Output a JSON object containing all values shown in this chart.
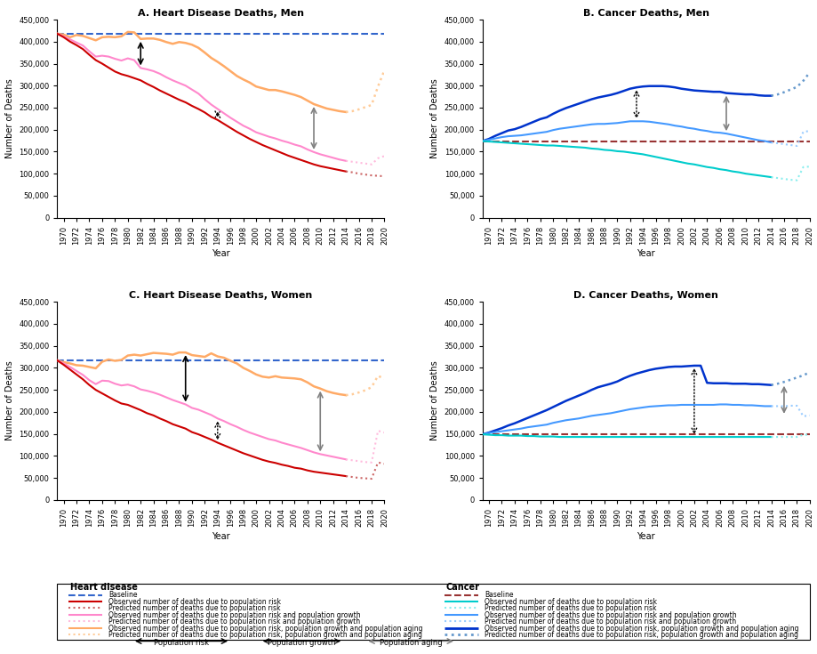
{
  "titles": [
    "A. Heart Disease Deaths, Men",
    "B. Cancer Deaths, Men",
    "C. Heart Disease Deaths, Women",
    "D. Cancer Deaths, Women"
  ],
  "years_obs": [
    1969,
    1970,
    1971,
    1972,
    1973,
    1974,
    1975,
    1976,
    1977,
    1978,
    1979,
    1980,
    1981,
    1982,
    1983,
    1984,
    1985,
    1986,
    1987,
    1988,
    1989,
    1990,
    1991,
    1992,
    1993,
    1994,
    1995,
    1996,
    1997,
    1998,
    1999,
    2000,
    2001,
    2002,
    2003,
    2004,
    2005,
    2006,
    2007,
    2008,
    2009,
    2010,
    2011,
    2012,
    2013,
    2014
  ],
  "years_pred": [
    2014,
    2015,
    2016,
    2017,
    2018,
    2019,
    2020
  ],
  "hd_men": {
    "baseline": 418000,
    "risk_obs": [
      418000,
      410000,
      400000,
      392000,
      383000,
      370000,
      358000,
      350000,
      341000,
      332000,
      326000,
      322000,
      317000,
      312000,
      304000,
      297000,
      289000,
      282000,
      275000,
      268000,
      262000,
      254000,
      247000,
      239000,
      229000,
      222000,
      213000,
      204000,
      195000,
      187000,
      179000,
      172000,
      165000,
      159000,
      153000,
      147000,
      141000,
      136000,
      131000,
      126000,
      121000,
      117000,
      114000,
      111000,
      108000,
      105000
    ],
    "risk_pred": [
      105000,
      103000,
      100000,
      98000,
      96000,
      95000,
      94000
    ],
    "growth_obs": [
      418000,
      412000,
      405000,
      398000,
      391000,
      378000,
      366000,
      368000,
      366000,
      361000,
      357000,
      362000,
      358000,
      340000,
      337000,
      333000,
      327000,
      319000,
      312000,
      306000,
      300000,
      291000,
      282000,
      269000,
      257000,
      247000,
      237000,
      227000,
      218000,
      209000,
      202000,
      194000,
      189000,
      184000,
      180000,
      175000,
      171000,
      166000,
      162000,
      155000,
      149000,
      144000,
      140000,
      136000,
      132000,
      129000
    ],
    "growth_pred": [
      129000,
      127000,
      125000,
      123000,
      121000,
      135000,
      140000
    ],
    "aging_obs": [
      418000,
      416000,
      410000,
      415000,
      413000,
      408000,
      403000,
      410000,
      411000,
      410000,
      412000,
      422000,
      421000,
      406000,
      407000,
      407000,
      404000,
      399000,
      395000,
      399000,
      397000,
      393000,
      386000,
      375000,
      363000,
      354000,
      344000,
      333000,
      322000,
      314000,
      307000,
      298000,
      294000,
      290000,
      290000,
      287000,
      283000,
      279000,
      274000,
      266000,
      258000,
      253000,
      248000,
      245000,
      242000,
      240000
    ],
    "aging_pred": [
      240000,
      242000,
      246000,
      251000,
      256000,
      298000,
      335000
    ]
  },
  "cancer_men": {
    "baseline": 174000,
    "risk_obs": [
      174000,
      173000,
      172000,
      171000,
      170000,
      169000,
      168000,
      167000,
      166000,
      165000,
      164000,
      164000,
      163000,
      162000,
      161000,
      160000,
      159000,
      157000,
      156000,
      154000,
      153000,
      151000,
      150000,
      148000,
      146000,
      144000,
      141000,
      138000,
      135000,
      132000,
      129000,
      126000,
      123000,
      121000,
      118000,
      115000,
      113000,
      110000,
      108000,
      105000,
      103000,
      100000,
      98000,
      96000,
      94000,
      92000
    ],
    "risk_pred": [
      92000,
      90000,
      88000,
      86000,
      85000,
      115000,
      116000
    ],
    "growth_obs": [
      174000,
      177000,
      180000,
      183000,
      185000,
      186000,
      187000,
      189000,
      191000,
      193000,
      195000,
      199000,
      202000,
      204000,
      206000,
      208000,
      210000,
      212000,
      213000,
      213000,
      214000,
      215000,
      217000,
      219000,
      219000,
      219000,
      218000,
      216000,
      214000,
      212000,
      209000,
      207000,
      204000,
      202000,
      199000,
      197000,
      194000,
      193000,
      191000,
      188000,
      185000,
      182000,
      179000,
      176000,
      174000,
      171000
    ],
    "growth_pred": [
      171000,
      169000,
      167000,
      165000,
      163000,
      195000,
      197000
    ],
    "aging_obs": [
      174000,
      179000,
      186000,
      192000,
      198000,
      201000,
      206000,
      212000,
      218000,
      224000,
      228000,
      236000,
      243000,
      249000,
      254000,
      259000,
      264000,
      269000,
      273000,
      276000,
      279000,
      283000,
      288000,
      293000,
      296000,
      298000,
      299000,
      299000,
      299000,
      298000,
      296000,
      293000,
      291000,
      289000,
      288000,
      287000,
      286000,
      286000,
      283000,
      282000,
      281000,
      280000,
      280000,
      278000,
      277000,
      277000
    ],
    "aging_pred": [
      277000,
      280000,
      285000,
      291000,
      297000,
      311000,
      330000
    ]
  },
  "hd_women": {
    "baseline": 317000,
    "risk_obs": [
      317000,
      307000,
      296000,
      285000,
      274000,
      261000,
      250000,
      242000,
      234000,
      226000,
      219000,
      216000,
      210000,
      204000,
      197000,
      192000,
      185000,
      179000,
      172000,
      167000,
      162000,
      154000,
      149000,
      143000,
      137000,
      130000,
      124000,
      118000,
      112000,
      106000,
      101000,
      96000,
      91000,
      87000,
      84000,
      80000,
      77000,
      73000,
      71000,
      67000,
      64000,
      62000,
      60000,
      58000,
      56000,
      54000
    ],
    "risk_pred": [
      54000,
      52000,
      50000,
      49000,
      48000,
      85000,
      82000
    ],
    "growth_obs": [
      317000,
      310000,
      302000,
      293000,
      284000,
      272000,
      263000,
      271000,
      270000,
      264000,
      260000,
      262000,
      258000,
      251000,
      248000,
      244000,
      239000,
      233000,
      227000,
      222000,
      217000,
      209000,
      205000,
      199000,
      193000,
      185000,
      179000,
      172000,
      166000,
      159000,
      153000,
      148000,
      143000,
      138000,
      135000,
      130000,
      126000,
      122000,
      118000,
      113000,
      108000,
      104000,
      101000,
      98000,
      95000,
      92000
    ],
    "growth_pred": [
      92000,
      90000,
      88000,
      86000,
      85000,
      157000,
      153000
    ],
    "aging_obs": [
      317000,
      313000,
      310000,
      306000,
      305000,
      302000,
      299000,
      314000,
      319000,
      316000,
      318000,
      328000,
      330000,
      328000,
      331000,
      334000,
      333000,
      332000,
      330000,
      335000,
      335000,
      329000,
      327000,
      325000,
      333000,
      326000,
      323000,
      316000,
      310000,
      300000,
      293000,
      285000,
      280000,
      278000,
      281000,
      278000,
      277000,
      276000,
      274000,
      267000,
      258000,
      253000,
      247000,
      243000,
      240000,
      238000
    ],
    "aging_pred": [
      238000,
      240000,
      244000,
      249000,
      256000,
      282000,
      275000
    ]
  },
  "cancer_women": {
    "baseline": 149000,
    "risk_obs": [
      149000,
      148000,
      147000,
      147000,
      146000,
      146000,
      146000,
      145000,
      145000,
      144000,
      144000,
      144000,
      143000,
      143000,
      143000,
      143000,
      143000,
      143000,
      143000,
      143000,
      143000,
      143000,
      143000,
      143000,
      143000,
      143000,
      143000,
      143000,
      143000,
      143000,
      143000,
      143000,
      143000,
      143000,
      143000,
      143000,
      143000,
      143000,
      143000,
      143000,
      143000,
      143000,
      143000,
      143000,
      143000,
      143000
    ],
    "risk_pred": [
      143000,
      143000,
      143000,
      143000,
      143000,
      148000,
      148000
    ],
    "growth_obs": [
      149000,
      152000,
      154000,
      156000,
      158000,
      160000,
      162000,
      165000,
      167000,
      169000,
      171000,
      175000,
      178000,
      181000,
      183000,
      185000,
      188000,
      191000,
      193000,
      195000,
      197000,
      200000,
      203000,
      206000,
      208000,
      210000,
      212000,
      213000,
      214000,
      215000,
      215000,
      216000,
      216000,
      216000,
      216000,
      216000,
      216000,
      217000,
      217000,
      216000,
      216000,
      215000,
      215000,
      214000,
      213000,
      213000
    ],
    "growth_pred": [
      213000,
      213000,
      213000,
      214000,
      214000,
      190000,
      192000
    ],
    "aging_obs": [
      149000,
      153000,
      158000,
      163000,
      169000,
      174000,
      180000,
      186000,
      192000,
      198000,
      204000,
      211000,
      218000,
      225000,
      231000,
      237000,
      243000,
      250000,
      256000,
      260000,
      264000,
      269000,
      276000,
      282000,
      287000,
      291000,
      295000,
      298000,
      300000,
      302000,
      303000,
      303000,
      304000,
      305000,
      305000,
      266000,
      265000,
      265000,
      265000,
      264000,
      264000,
      264000,
      263000,
      263000,
      262000,
      261000
    ],
    "aging_pred": [
      261000,
      264000,
      268000,
      273000,
      278000,
      283000,
      290000
    ]
  },
  "colors": {
    "hd_baseline": "#3366CC",
    "hd_risk_obs": "#CC0000",
    "hd_risk_pred": "#CC6666",
    "hd_growth_obs": "#FF88CC",
    "hd_growth_pred": "#FFBBDD",
    "hd_aging_obs": "#FFAA66",
    "hd_aging_pred": "#FFCC99",
    "cancer_baseline": "#993333",
    "cancer_risk_obs": "#00CCCC",
    "cancer_risk_pred": "#88EEEE",
    "cancer_growth_obs": "#4499FF",
    "cancer_growth_pred": "#99CCFF",
    "cancer_aging_obs": "#0033CC",
    "cancer_aging_pred": "#6699CC"
  },
  "legend_items_hd": [
    {
      "color": "#3366CC",
      "ls": "--",
      "lw": 1.5,
      "label": "Baseline"
    },
    {
      "color": "#CC0000",
      "ls": "-",
      "lw": 1.5,
      "label": "Observed number of deaths due to population risk"
    },
    {
      "color": "#CC6666",
      "ls": ":",
      "lw": 1.5,
      "label": "Predicted number of deaths due to population risk"
    },
    {
      "color": "#FF88CC",
      "ls": "-",
      "lw": 1.5,
      "label": "Observed number of deaths due to population risk and population growth"
    },
    {
      "color": "#FFBBDD",
      "ls": ":",
      "lw": 1.5,
      "label": "Predicted number of deaths due to population risk and population growth"
    },
    {
      "color": "#FFAA66",
      "ls": "-",
      "lw": 1.5,
      "label": "Observed number of deaths due to population risk, population growth and population aging"
    },
    {
      "color": "#FFCC99",
      "ls": ":",
      "lw": 1.5,
      "label": "Predicted number of deaths due to population risk, population growth and population aging"
    }
  ],
  "legend_items_cancer": [
    {
      "color": "#993333",
      "ls": "--",
      "lw": 1.5,
      "label": "Baseline"
    },
    {
      "color": "#00CCCC",
      "ls": "-",
      "lw": 1.5,
      "label": "Observed number of deaths due to population risk"
    },
    {
      "color": "#88EEEE",
      "ls": ":",
      "lw": 1.5,
      "label": "Predicted number of deaths due to population risk"
    },
    {
      "color": "#4499FF",
      "ls": "-",
      "lw": 1.5,
      "label": "Observed number of deaths due to population risk and population growth"
    },
    {
      "color": "#99CCFF",
      "ls": ":",
      "lw": 1.5,
      "label": "Predicted number of deaths due to population risk and population growth"
    },
    {
      "color": "#0033CC",
      "ls": "-",
      "lw": 2.0,
      "label": "Observed number of deaths due to population risk, population growth and population aging"
    },
    {
      "color": "#6699CC",
      "ls": ":",
      "lw": 2.0,
      "label": "Predicted number of deaths due to population risk, population growth and population aging"
    }
  ]
}
